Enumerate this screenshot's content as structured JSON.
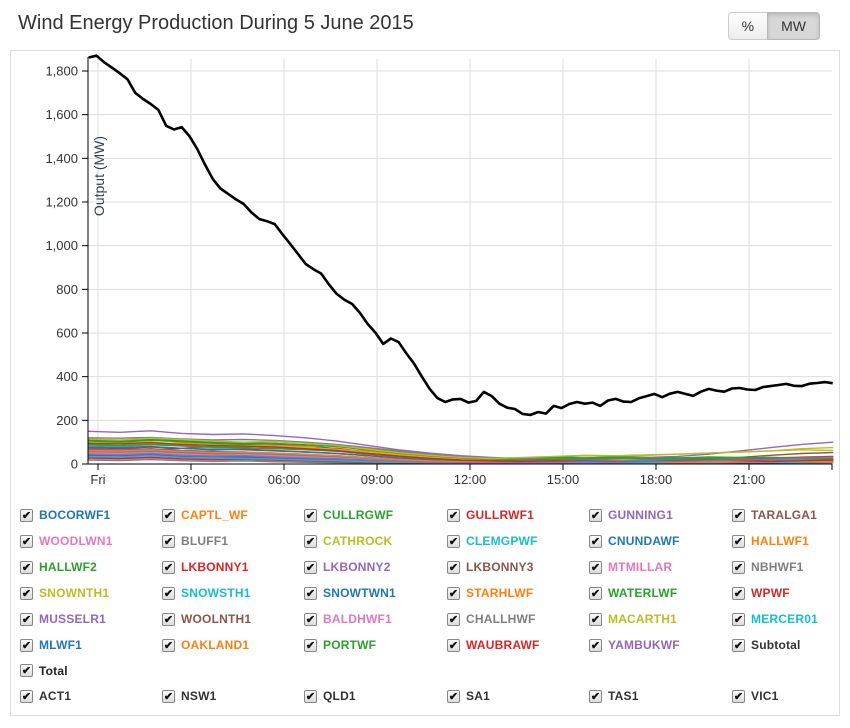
{
  "header": {
    "title": "Wind Energy Production During 5 June 2015",
    "unit_buttons": [
      {
        "label": "%",
        "active": false
      },
      {
        "label": "MW",
        "active": true
      }
    ]
  },
  "chart_data": {
    "type": "line",
    "title": "Wind Energy Production During 5 June 2015",
    "xlabel": "",
    "ylabel": "Output (MW)",
    "ylim": [
      0,
      1890
    ],
    "yticks": [
      0,
      200,
      400,
      600,
      800,
      1000,
      1200,
      1400,
      1600,
      1800
    ],
    "x_tick_labels": [
      "Fri",
      "03:00",
      "06:00",
      "09:00",
      "12:00",
      "15:00",
      "18:00",
      "21:00"
    ],
    "x_tick_hours": [
      0,
      3,
      6,
      9,
      12,
      15,
      18,
      21
    ],
    "grid": true,
    "legend_position": "bottom",
    "start_hour": -0.3,
    "total_series": {
      "name": "Total",
      "color": "#000000",
      "step_hours": 0.25,
      "values": [
        1862,
        1870,
        1840,
        1815,
        1790,
        1762,
        1700,
        1672,
        1649,
        1622,
        1549,
        1532,
        1543,
        1502,
        1443,
        1372,
        1306,
        1262,
        1237,
        1212,
        1191,
        1152,
        1122,
        1112,
        1099,
        1052,
        1008,
        962,
        916,
        892,
        872,
        822,
        779,
        752,
        733,
        692,
        641,
        602,
        550,
        575,
        558,
        506,
        459,
        400,
        344,
        302,
        284,
        296,
        298,
        281,
        289,
        330,
        311,
        276,
        258,
        252,
        229,
        225,
        238,
        231,
        266,
        256,
        275,
        284,
        276,
        281,
        266,
        291,
        298,
        286,
        284,
        301,
        311,
        321,
        306,
        322,
        330,
        321,
        312,
        331,
        344,
        336,
        331,
        346,
        348,
        341,
        339,
        352,
        357,
        362,
        367,
        358,
        357,
        368,
        371,
        375,
        370
      ]
    },
    "farm_step_hours": 1,
    "farm_series": [
      {
        "name": "BOCORWF1",
        "color": "#1f77b4",
        "checked": true,
        "values": [
          112,
          108,
          115,
          104,
          98,
          96,
          90,
          84,
          70,
          55,
          40,
          30,
          22,
          18,
          14,
          12,
          10,
          8,
          9,
          7,
          6,
          8,
          7,
          9,
          8
        ]
      },
      {
        "name": "CAPTL_WF",
        "color": "#ff7f0e",
        "checked": true,
        "values": [
          95,
          100,
          92,
          97,
          88,
          90,
          85,
          80,
          86,
          60,
          45,
          30,
          20,
          15,
          12,
          10,
          14,
          12,
          10,
          12,
          15,
          14,
          18,
          22,
          20
        ]
      },
      {
        "name": "CULLRGWF",
        "color": "#2ca02c",
        "checked": true,
        "values": [
          110,
          105,
          112,
          108,
          100,
          95,
          102,
          96,
          88,
          70,
          55,
          42,
          30,
          25,
          28,
          32,
          30,
          34,
          30,
          28,
          25,
          28,
          30,
          26,
          24
        ]
      },
      {
        "name": "GULLRWF1",
        "color": "#d62728",
        "checked": true,
        "values": [
          70,
          75,
          65,
          72,
          80,
          85,
          75,
          68,
          72,
          55,
          40,
          28,
          20,
          15,
          12,
          18,
          15,
          12,
          15,
          18,
          20,
          16,
          14,
          12,
          10
        ]
      },
      {
        "name": "GUNNING1",
        "color": "#9467bd",
        "checked": true,
        "values": [
          40,
          38,
          42,
          35,
          30,
          28,
          32,
          25,
          20,
          15,
          10,
          8,
          6,
          5,
          4,
          6,
          5,
          8,
          6,
          5,
          8,
          10,
          12,
          10,
          8
        ]
      },
      {
        "name": "TARALGA1",
        "color": "#8c564b",
        "checked": true,
        "values": [
          55,
          50,
          48,
          52,
          45,
          40,
          42,
          38,
          30,
          22,
          15,
          10,
          8,
          6,
          8,
          10,
          12,
          10,
          14,
          18,
          22,
          30,
          40,
          48,
          52
        ]
      },
      {
        "name": "WOODLWN1",
        "color": "#e377c2",
        "checked": true,
        "values": [
          25,
          22,
          26,
          20,
          18,
          16,
          14,
          12,
          10,
          8,
          6,
          5,
          4,
          3,
          4,
          5,
          4,
          6,
          5,
          4,
          6,
          8,
          6,
          5,
          6
        ]
      },
      {
        "name": "BLUFF1",
        "color": "#7f7f7f",
        "checked": true,
        "values": [
          18,
          16,
          20,
          15,
          12,
          14,
          10,
          8,
          6,
          5,
          4,
          3,
          3,
          2,
          3,
          4,
          3,
          2,
          3,
          4,
          5,
          4,
          3,
          4,
          5
        ]
      },
      {
        "name": "CATHROCK",
        "color": "#bcbd22",
        "checked": true,
        "values": [
          30,
          28,
          32,
          26,
          22,
          25,
          20,
          18,
          15,
          10,
          8,
          6,
          5,
          4,
          6,
          8,
          6,
          5,
          8,
          10,
          8,
          6,
          8,
          10,
          12
        ]
      },
      {
        "name": "CLEMGPWF",
        "color": "#17becf",
        "checked": true,
        "values": [
          85,
          80,
          88,
          82,
          75,
          70,
          74,
          68,
          60,
          45,
          35,
          25,
          18,
          14,
          12,
          15,
          18,
          15,
          12,
          15,
          18,
          20,
          22,
          18,
          15
        ]
      },
      {
        "name": "CNUNDAWF",
        "color": "#1f77b4",
        "checked": true,
        "values": [
          45,
          48,
          42,
          40,
          38,
          35,
          32,
          28,
          22,
          18,
          12,
          10,
          8,
          6,
          5,
          8,
          6,
          8,
          10,
          8,
          6,
          8,
          10,
          12,
          10
        ]
      },
      {
        "name": "HALLWF1",
        "color": "#ff7f0e",
        "checked": true,
        "values": [
          90,
          95,
          88,
          92,
          85,
          80,
          84,
          78,
          88,
          70,
          50,
          35,
          25,
          20,
          15,
          12,
          15,
          18,
          15,
          20,
          25,
          22,
          28,
          32,
          35
        ]
      },
      {
        "name": "HALLWF2",
        "color": "#2ca02c",
        "checked": true,
        "values": [
          60,
          58,
          62,
          55,
          50,
          52,
          48,
          42,
          38,
          28,
          20,
          15,
          10,
          8,
          10,
          12,
          15,
          12,
          10,
          12,
          15,
          18,
          15,
          12,
          14
        ]
      },
      {
        "name": "LKBONNY1",
        "color": "#d62728",
        "checked": true,
        "values": [
          75,
          70,
          78,
          72,
          65,
          68,
          62,
          55,
          48,
          38,
          28,
          20,
          15,
          10,
          8,
          12,
          10,
          8,
          10,
          12,
          15,
          12,
          10,
          8,
          10
        ]
      },
      {
        "name": "LKBONNY2",
        "color": "#9467bd",
        "checked": true,
        "values": [
          68,
          65,
          70,
          62,
          58,
          55,
          50,
          45,
          38,
          30,
          22,
          15,
          10,
          8,
          6,
          8,
          10,
          12,
          10,
          8,
          10,
          12,
          15,
          12,
          10
        ]
      },
      {
        "name": "LKBONNY3",
        "color": "#8c564b",
        "checked": true,
        "values": [
          38,
          35,
          40,
          32,
          28,
          30,
          25,
          22,
          18,
          12,
          8,
          6,
          5,
          4,
          3,
          5,
          4,
          6,
          5,
          4,
          6,
          8,
          6,
          5,
          6
        ]
      },
      {
        "name": "MTMILLAR",
        "color": "#e377c2",
        "checked": true,
        "values": [
          32,
          30,
          34,
          28,
          25,
          22,
          20,
          18,
          14,
          10,
          8,
          6,
          4,
          3,
          4,
          6,
          5,
          4,
          6,
          8,
          6,
          5,
          6,
          8,
          10
        ]
      },
      {
        "name": "NBHWF1",
        "color": "#7f7f7f",
        "checked": true,
        "values": [
          120,
          118,
          122,
          115,
          110,
          112,
          108,
          100,
          90,
          75,
          60,
          45,
          32,
          25,
          20,
          18,
          15,
          18,
          20,
          18,
          15,
          18,
          20,
          22,
          20
        ]
      },
      {
        "name": "SNOWNTH1",
        "color": "#bcbd22",
        "checked": true,
        "values": [
          98,
          95,
          100,
          92,
          88,
          85,
          80,
          75,
          68,
          55,
          42,
          30,
          22,
          18,
          20,
          25,
          30,
          35,
          40,
          45,
          50,
          55,
          60,
          65,
          62
        ]
      },
      {
        "name": "SNOWSTH1",
        "color": "#17becf",
        "checked": true,
        "values": [
          55,
          52,
          58,
          50,
          45,
          48,
          42,
          38,
          32,
          25,
          18,
          12,
          10,
          8,
          10,
          12,
          15,
          12,
          15,
          18,
          20,
          18,
          15,
          18,
          20
        ]
      },
      {
        "name": "SNOWTWN1",
        "color": "#1f77b4",
        "checked": true,
        "values": [
          42,
          40,
          45,
          38,
          35,
          32,
          30,
          25,
          20,
          15,
          10,
          8,
          6,
          5,
          6,
          8,
          10,
          8,
          6,
          8,
          10,
          12,
          10,
          8,
          10
        ]
      },
      {
        "name": "STARHLWF",
        "color": "#ff7f0e",
        "checked": true,
        "values": [
          48,
          45,
          50,
          42,
          38,
          40,
          35,
          30,
          25,
          18,
          12,
          8,
          6,
          5,
          4,
          6,
          8,
          6,
          8,
          10,
          12,
          10,
          8,
          10,
          12
        ]
      },
      {
        "name": "WATERLWF",
        "color": "#2ca02c",
        "checked": true,
        "values": [
          105,
          100,
          108,
          102,
          95,
          90,
          94,
          88,
          80,
          65,
          50,
          38,
          28,
          22,
          25,
          30,
          28,
          32,
          30,
          28,
          32,
          30,
          28,
          25,
          22
        ]
      },
      {
        "name": "WPWF",
        "color": "#d62728",
        "checked": true,
        "values": [
          28,
          25,
          30,
          24,
          20,
          22,
          18,
          15,
          12,
          8,
          6,
          4,
          3,
          2,
          3,
          4,
          3,
          4,
          5,
          4,
          3,
          4,
          5,
          6,
          5
        ]
      },
      {
        "name": "MUSSELR1",
        "color": "#9467bd",
        "checked": true,
        "values": [
          150,
          145,
          152,
          140,
          135,
          138,
          130,
          120,
          105,
          85,
          65,
          50,
          38,
          30,
          25,
          22,
          20,
          25,
          30,
          35,
          45,
          60,
          75,
          90,
          100
        ]
      },
      {
        "name": "WOOLNTH1",
        "color": "#8c564b",
        "checked": true,
        "values": [
          65,
          62,
          68,
          60,
          55,
          52,
          48,
          42,
          35,
          25,
          18,
          12,
          8,
          6,
          8,
          10,
          12,
          10,
          12,
          15,
          18,
          20,
          25,
          30,
          35
        ]
      },
      {
        "name": "BALDHWF1",
        "color": "#e377c2",
        "checked": true,
        "values": [
          50,
          48,
          52,
          45,
          40,
          42,
          38,
          32,
          28,
          20,
          14,
          10,
          8,
          6,
          5,
          8,
          6,
          8,
          10,
          8,
          6,
          8,
          10,
          8,
          6
        ]
      },
      {
        "name": "CHALLHWF",
        "color": "#7f7f7f",
        "checked": true,
        "values": [
          58,
          55,
          60,
          52,
          48,
          50,
          45,
          40,
          34,
          26,
          18,
          12,
          10,
          8,
          6,
          8,
          10,
          8,
          10,
          12,
          10,
          8,
          10,
          12,
          14
        ]
      },
      {
        "name": "MACARTH1",
        "color": "#bcbd22",
        "checked": true,
        "values": [
          115,
          110,
          118,
          112,
          105,
          100,
          104,
          95,
          85,
          68,
          52,
          40,
          30,
          25,
          30,
          35,
          40,
          38,
          42,
          45,
          50,
          55,
          60,
          70,
          75
        ]
      },
      {
        "name": "MERCER01",
        "color": "#17becf",
        "checked": true,
        "values": [
          35,
          32,
          38,
          30,
          28,
          25,
          22,
          18,
          15,
          10,
          8,
          6,
          5,
          4,
          5,
          6,
          8,
          6,
          5,
          6,
          8,
          10,
          8,
          6,
          8
        ]
      },
      {
        "name": "MLWF1",
        "color": "#1f77b4",
        "checked": true,
        "values": [
          78,
          75,
          80,
          72,
          68,
          65,
          60,
          55,
          48,
          38,
          28,
          20,
          15,
          12,
          10,
          12,
          15,
          12,
          10,
          12,
          15,
          18,
          15,
          12,
          10
        ]
      },
      {
        "name": "OAKLAND1",
        "color": "#ff7f0e",
        "checked": true,
        "values": [
          62,
          60,
          65,
          58,
          52,
          55,
          50,
          44,
          38,
          28,
          20,
          14,
          10,
          8,
          6,
          8,
          10,
          12,
          10,
          8,
          10,
          12,
          14,
          12,
          10
        ]
      },
      {
        "name": "PORTWF",
        "color": "#2ca02c",
        "checked": true,
        "values": [
          88,
          85,
          90,
          84,
          78,
          75,
          70,
          65,
          58,
          45,
          35,
          25,
          18,
          15,
          18,
          22,
          25,
          28,
          25,
          22,
          25,
          28,
          30,
          28,
          25
        ]
      },
      {
        "name": "WAUBRAWF",
        "color": "#d62728",
        "checked": true,
        "values": [
          95,
          92,
          98,
          90,
          85,
          82,
          78,
          70,
          62,
          48,
          36,
          26,
          18,
          14,
          12,
          15,
          12,
          10,
          12,
          15,
          18,
          15,
          12,
          15,
          18
        ]
      },
      {
        "name": "YAMBUKWF",
        "color": "#9467bd",
        "checked": true,
        "values": [
          45,
          42,
          48,
          40,
          36,
          38,
          32,
          28,
          24,
          18,
          12,
          8,
          6,
          5,
          6,
          8,
          10,
          8,
          10,
          12,
          15,
          18,
          22,
          26,
          30
        ]
      }
    ]
  },
  "legend": {
    "check_glyph": "✔",
    "subtotal": {
      "label": "Subtotal",
      "color": "#333333",
      "checked": true
    },
    "total": {
      "label": "Total",
      "color": "#222222",
      "checked": true
    },
    "regions": [
      {
        "label": "ACT1",
        "color": "#333333",
        "checked": true
      },
      {
        "label": "NSW1",
        "color": "#333333",
        "checked": true
      },
      {
        "label": "QLD1",
        "color": "#333333",
        "checked": true
      },
      {
        "label": "SA1",
        "color": "#333333",
        "checked": true
      },
      {
        "label": "TAS1",
        "color": "#333333",
        "checked": true
      },
      {
        "label": "VIC1",
        "color": "#333333",
        "checked": true
      }
    ]
  }
}
